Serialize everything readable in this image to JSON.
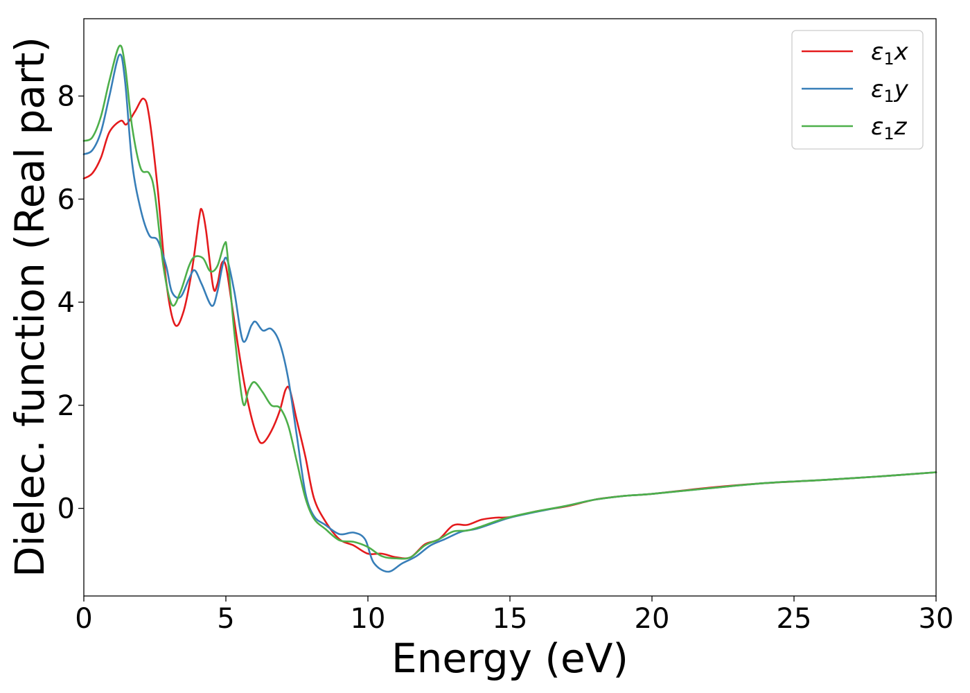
{
  "chart_data": {
    "type": "line",
    "xlabel": "Energy (eV)",
    "ylabel": "Dielec. function (Real part)",
    "xlim": [
      0,
      30
    ],
    "ylim": [
      -1.7,
      9.5
    ],
    "x_ticks": [
      0,
      5,
      10,
      15,
      20,
      25,
      30
    ],
    "y_ticks": [
      0,
      2,
      4,
      6,
      8
    ],
    "grid": false,
    "legend_position": "top-right",
    "series": [
      {
        "name": "ε₁x",
        "legend": {
          "symbol": "ε",
          "sub": "1",
          "var": "x"
        },
        "color": "#e41a1c",
        "points": [
          [
            0,
            6.4
          ],
          [
            0.3,
            6.5
          ],
          [
            0.6,
            6.8
          ],
          [
            0.9,
            7.3
          ],
          [
            1.3,
            7.52
          ],
          [
            1.5,
            7.45
          ],
          [
            1.8,
            7.7
          ],
          [
            2.1,
            7.95
          ],
          [
            2.3,
            7.6
          ],
          [
            2.6,
            6.2
          ],
          [
            2.9,
            4.4
          ],
          [
            3.2,
            3.57
          ],
          [
            3.5,
            3.8
          ],
          [
            3.8,
            4.6
          ],
          [
            4.05,
            5.6
          ],
          [
            4.15,
            5.8
          ],
          [
            4.3,
            5.4
          ],
          [
            4.55,
            4.3
          ],
          [
            4.7,
            4.35
          ],
          [
            4.85,
            4.75
          ],
          [
            5.0,
            4.7
          ],
          [
            5.2,
            4.0
          ],
          [
            5.5,
            2.9
          ],
          [
            5.8,
            2.0
          ],
          [
            6.1,
            1.4
          ],
          [
            6.3,
            1.27
          ],
          [
            6.6,
            1.5
          ],
          [
            6.9,
            1.9
          ],
          [
            7.1,
            2.3
          ],
          [
            7.25,
            2.3
          ],
          [
            7.5,
            1.7
          ],
          [
            7.8,
            1.0
          ],
          [
            8.1,
            0.2
          ],
          [
            8.5,
            -0.25
          ],
          [
            9.0,
            -0.6
          ],
          [
            9.5,
            -0.72
          ],
          [
            10.0,
            -0.88
          ],
          [
            10.5,
            -0.88
          ],
          [
            11.0,
            -0.95
          ],
          [
            11.5,
            -0.95
          ],
          [
            12.0,
            -0.7
          ],
          [
            12.5,
            -0.6
          ],
          [
            13.0,
            -0.33
          ],
          [
            13.5,
            -0.32
          ],
          [
            14.0,
            -0.22
          ],
          [
            14.5,
            -0.18
          ],
          [
            15.0,
            -0.17
          ],
          [
            16,
            -0.05
          ],
          [
            17,
            0.04
          ],
          [
            18,
            0.17
          ],
          [
            19,
            0.24
          ],
          [
            20,
            0.28
          ],
          [
            22,
            0.4
          ],
          [
            24,
            0.49
          ],
          [
            26,
            0.55
          ],
          [
            28,
            0.62
          ],
          [
            30,
            0.7
          ]
        ]
      },
      {
        "name": "ε₁y",
        "legend": {
          "symbol": "ε",
          "sub": "1",
          "var": "y"
        },
        "color": "#377eb8",
        "points": [
          [
            0,
            6.87
          ],
          [
            0.3,
            6.95
          ],
          [
            0.6,
            7.3
          ],
          [
            0.9,
            8.0
          ],
          [
            1.25,
            8.8
          ],
          [
            1.45,
            8.3
          ],
          [
            1.7,
            6.7
          ],
          [
            2.0,
            5.8
          ],
          [
            2.3,
            5.3
          ],
          [
            2.6,
            5.2
          ],
          [
            2.9,
            4.7
          ],
          [
            3.1,
            4.2
          ],
          [
            3.4,
            4.1
          ],
          [
            3.7,
            4.45
          ],
          [
            3.9,
            4.62
          ],
          [
            4.15,
            4.35
          ],
          [
            4.5,
            3.93
          ],
          [
            4.7,
            4.2
          ],
          [
            4.9,
            4.75
          ],
          [
            5.05,
            4.82
          ],
          [
            5.3,
            4.2
          ],
          [
            5.6,
            3.25
          ],
          [
            5.9,
            3.55
          ],
          [
            6.05,
            3.62
          ],
          [
            6.3,
            3.45
          ],
          [
            6.6,
            3.48
          ],
          [
            6.9,
            3.2
          ],
          [
            7.2,
            2.5
          ],
          [
            7.5,
            1.4
          ],
          [
            7.8,
            0.3
          ],
          [
            8.1,
            -0.15
          ],
          [
            8.5,
            -0.32
          ],
          [
            9.0,
            -0.5
          ],
          [
            9.5,
            -0.47
          ],
          [
            9.9,
            -0.6
          ],
          [
            10.2,
            -1.05
          ],
          [
            10.7,
            -1.23
          ],
          [
            11.2,
            -1.07
          ],
          [
            11.7,
            -0.93
          ],
          [
            12.2,
            -0.72
          ],
          [
            12.7,
            -0.6
          ],
          [
            13.3,
            -0.45
          ],
          [
            13.8,
            -0.4
          ],
          [
            14.5,
            -0.27
          ],
          [
            15.0,
            -0.18
          ],
          [
            16,
            -0.06
          ],
          [
            17,
            0.05
          ],
          [
            18,
            0.17
          ],
          [
            19,
            0.24
          ],
          [
            20,
            0.28
          ],
          [
            22,
            0.39
          ],
          [
            24,
            0.49
          ],
          [
            26,
            0.55
          ],
          [
            28,
            0.62
          ],
          [
            30,
            0.7
          ]
        ]
      },
      {
        "name": "ε₁z",
        "legend": {
          "symbol": "ε",
          "sub": "1",
          "var": "z"
        },
        "color": "#4daf4a",
        "points": [
          [
            0,
            7.13
          ],
          [
            0.3,
            7.2
          ],
          [
            0.6,
            7.6
          ],
          [
            0.9,
            8.3
          ],
          [
            1.25,
            8.97
          ],
          [
            1.45,
            8.6
          ],
          [
            1.7,
            7.4
          ],
          [
            2.0,
            6.6
          ],
          [
            2.3,
            6.5
          ],
          [
            2.5,
            6.1
          ],
          [
            2.8,
            4.7
          ],
          [
            3.1,
            3.95
          ],
          [
            3.4,
            4.2
          ],
          [
            3.7,
            4.7
          ],
          [
            3.9,
            4.88
          ],
          [
            4.2,
            4.85
          ],
          [
            4.45,
            4.6
          ],
          [
            4.7,
            4.7
          ],
          [
            4.95,
            5.13
          ],
          [
            5.05,
            4.95
          ],
          [
            5.3,
            3.4
          ],
          [
            5.6,
            2.05
          ],
          [
            5.8,
            2.3
          ],
          [
            6.0,
            2.45
          ],
          [
            6.3,
            2.25
          ],
          [
            6.6,
            2.0
          ],
          [
            6.9,
            1.95
          ],
          [
            7.2,
            1.6
          ],
          [
            7.5,
            0.9
          ],
          [
            7.8,
            0.2
          ],
          [
            8.1,
            -0.2
          ],
          [
            8.5,
            -0.4
          ],
          [
            9.0,
            -0.62
          ],
          [
            9.5,
            -0.65
          ],
          [
            10.0,
            -0.75
          ],
          [
            10.5,
            -0.93
          ],
          [
            11.0,
            -0.97
          ],
          [
            11.5,
            -0.95
          ],
          [
            12.0,
            -0.72
          ],
          [
            12.5,
            -0.6
          ],
          [
            13.0,
            -0.45
          ],
          [
            13.5,
            -0.43
          ],
          [
            14.0,
            -0.35
          ],
          [
            14.5,
            -0.25
          ],
          [
            15.0,
            -0.17
          ],
          [
            16,
            -0.05
          ],
          [
            17,
            0.05
          ],
          [
            18,
            0.17
          ],
          [
            19,
            0.24
          ],
          [
            20,
            0.28
          ],
          [
            22,
            0.39
          ],
          [
            24,
            0.49
          ],
          [
            26,
            0.55
          ],
          [
            28,
            0.62
          ],
          [
            30,
            0.7
          ]
        ]
      }
    ]
  }
}
